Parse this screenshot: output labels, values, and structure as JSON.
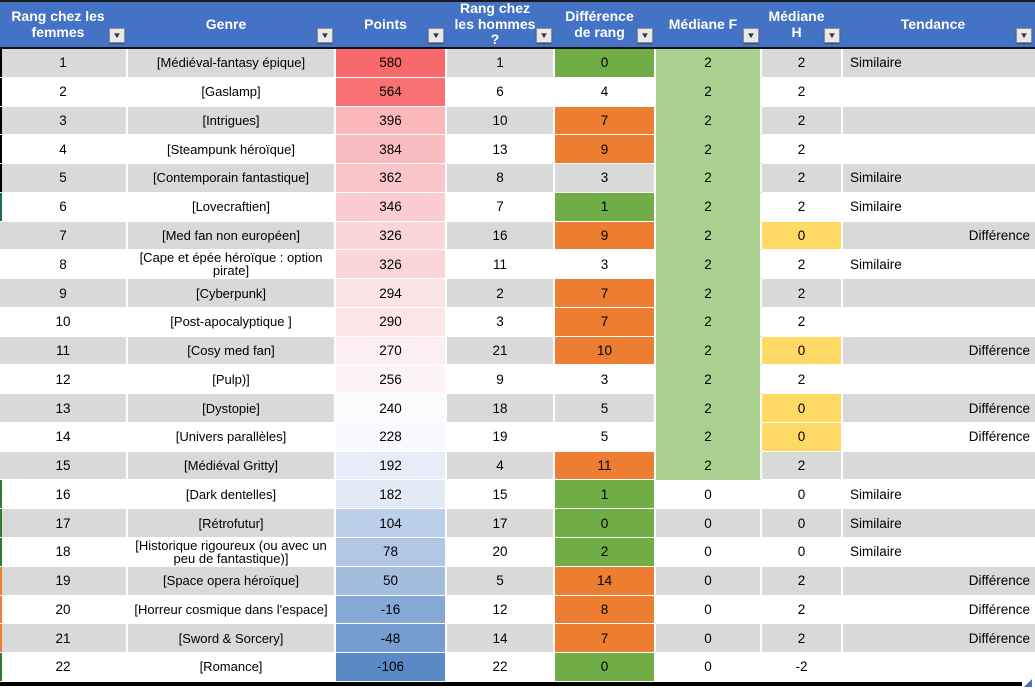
{
  "palette": {
    "header_bg": "#4472C4",
    "header_text": "#FFFFFF",
    "zebra_gray": "#D9D9D9",
    "zebra_white": "#FFFFFF",
    "diff_green": "#70AD47",
    "diff_orange": "#ED7D31",
    "mediane_f_green": "#A9D08E",
    "mediane_h_yellow": "#FFD966",
    "points_scale_max_red": "#F8696B",
    "points_scale_mid_white": "#FCFCFF",
    "points_scale_min_blue": "#5A8AC6",
    "table_border_black": "#000000",
    "resize_handle_blue": "#4472C4"
  },
  "icons": {
    "filter_dropdown": "▼"
  },
  "table": {
    "columns": [
      {
        "label": "Rang chez les femmes"
      },
      {
        "label": "Genre"
      },
      {
        "label": "Points"
      },
      {
        "label": "Rang chez les hommes ?"
      },
      {
        "label": "Différence de rang"
      },
      {
        "label": "Médiane F"
      },
      {
        "label": "Médiane H"
      },
      {
        "label": "Tendance"
      }
    ],
    "rows": [
      {
        "rank_f": "1",
        "genre": "[Médiéval-fantasy épique]",
        "points": "580",
        "points_bg": "#F8696B",
        "rank_h": "1",
        "diff": "0",
        "diff_bg": "#70AD47",
        "med_f": "2",
        "med_f_bg": "#A9D08E",
        "med_h": "2",
        "med_h_bg": "",
        "tendance": "Similaire",
        "tendance_align": "left",
        "zebra": "#D9D9D9",
        "edge_color": "#000000"
      },
      {
        "rank_f": "2",
        "genre": "[Gaslamp]",
        "points": "564",
        "points_bg": "#F87173",
        "rank_h": "6",
        "diff": "4",
        "diff_bg": "",
        "med_f": "2",
        "med_f_bg": "#A9D08E",
        "med_h": "2",
        "med_h_bg": "",
        "tendance": "",
        "tendance_align": "left",
        "zebra": "#FFFFFF",
        "edge_color": "#000000"
      },
      {
        "rank_f": "3",
        "genre": "[Intrigues]",
        "points": "396",
        "points_bg": "#FAB8BA",
        "rank_h": "10",
        "diff": "7",
        "diff_bg": "#ED7D31",
        "med_f": "2",
        "med_f_bg": "#A9D08E",
        "med_h": "2",
        "med_h_bg": "",
        "tendance": "",
        "tendance_align": "left",
        "zebra": "#D9D9D9",
        "edge_color": "#000000"
      },
      {
        "rank_f": "4",
        "genre": "[Steampunk héroïque]",
        "points": "384",
        "points_bg": "#FABDBF",
        "rank_h": "13",
        "diff": "9",
        "diff_bg": "#ED7D31",
        "med_f": "2",
        "med_f_bg": "#A9D08E",
        "med_h": "2",
        "med_h_bg": "",
        "tendance": "",
        "tendance_align": "left",
        "zebra": "#FFFFFF",
        "edge_color": "#000000"
      },
      {
        "rank_f": "5",
        "genre": "[Contemporain fantastique]",
        "points": "362",
        "points_bg": "#FAC6C9",
        "rank_h": "8",
        "diff": "3",
        "diff_bg": "",
        "med_f": "2",
        "med_f_bg": "#A9D08E",
        "med_h": "2",
        "med_h_bg": "",
        "tendance": "Similaire",
        "tendance_align": "left",
        "zebra": "#D9D9D9",
        "edge_color": "#000000"
      },
      {
        "rank_f": "6",
        "genre": "[Lovecraftien]",
        "points": "346",
        "points_bg": "#FBCDD0",
        "rank_h": "7",
        "diff": "1",
        "diff_bg": "#70AD47",
        "med_f": "2",
        "med_f_bg": "#A9D08E",
        "med_h": "2",
        "med_h_bg": "",
        "tendance": "Similaire",
        "tendance_align": "left",
        "zebra": "#FFFFFF",
        "edge_color": "#1E7145"
      },
      {
        "rank_f": "7",
        "genre": "[Med fan non européen]",
        "points": "326",
        "points_bg": "#FBD6D9",
        "rank_h": "16",
        "diff": "9",
        "diff_bg": "#ED7D31",
        "med_f": "2",
        "med_f_bg": "#A9D08E",
        "med_h": "0",
        "med_h_bg": "#FFD966",
        "tendance": "Différence",
        "tendance_align": "right",
        "zebra": "#D9D9D9",
        "edge_color": ""
      },
      {
        "rank_f": "8",
        "genre": "[Cape et épée héroïque : option pirate]",
        "points": "326",
        "points_bg": "#FBD6D9",
        "rank_h": "11",
        "diff": "3",
        "diff_bg": "",
        "med_f": "2",
        "med_f_bg": "#A9D08E",
        "med_h": "2",
        "med_h_bg": "",
        "tendance": "Similaire",
        "tendance_align": "left",
        "zebra": "#FFFFFF",
        "edge_color": ""
      },
      {
        "rank_f": "9",
        "genre": "[Cyberpunk]",
        "points": "294",
        "points_bg": "#FBE4E6",
        "rank_h": "2",
        "diff": "7",
        "diff_bg": "#ED7D31",
        "med_f": "2",
        "med_f_bg": "#A9D08E",
        "med_h": "2",
        "med_h_bg": "",
        "tendance": "",
        "tendance_align": "left",
        "zebra": "#D9D9D9",
        "edge_color": ""
      },
      {
        "rank_f": "10",
        "genre": "[Post-apocalyptique ]",
        "points": "290",
        "points_bg": "#FBE5E8",
        "rank_h": "3",
        "diff": "7",
        "diff_bg": "#ED7D31",
        "med_f": "2",
        "med_f_bg": "#A9D08E",
        "med_h": "2",
        "med_h_bg": "",
        "tendance": "",
        "tendance_align": "left",
        "zebra": "#FFFFFF",
        "edge_color": ""
      },
      {
        "rank_f": "11",
        "genre": "[Cosy med fan]",
        "points": "270",
        "points_bg": "#FCEEF1",
        "rank_h": "21",
        "diff": "10",
        "diff_bg": "#ED7D31",
        "med_f": "2",
        "med_f_bg": "#A9D08E",
        "med_h": "0",
        "med_h_bg": "#FFD966",
        "tendance": "Différence",
        "tendance_align": "right",
        "zebra": "#D9D9D9",
        "edge_color": ""
      },
      {
        "rank_f": "12",
        "genre": "[Pulp)]",
        "points": "256",
        "points_bg": "#FCF4F7",
        "rank_h": "9",
        "diff": "3",
        "diff_bg": "",
        "med_f": "2",
        "med_f_bg": "#A9D08E",
        "med_h": "2",
        "med_h_bg": "",
        "tendance": "",
        "tendance_align": "left",
        "zebra": "#FFFFFF",
        "edge_color": ""
      },
      {
        "rank_f": "13",
        "genre": "[Dystopie]",
        "points": "240",
        "points_bg": "#FCFBFE",
        "rank_h": "18",
        "diff": "5",
        "diff_bg": "",
        "med_f": "2",
        "med_f_bg": "#A9D08E",
        "med_h": "0",
        "med_h_bg": "#FFD966",
        "tendance": "Différence",
        "tendance_align": "right",
        "zebra": "#D9D9D9",
        "edge_color": ""
      },
      {
        "rank_f": "14",
        "genre": "[Univers parallèles]",
        "points": "228",
        "points_bg": "#F8F9FE",
        "rank_h": "19",
        "diff": "5",
        "diff_bg": "",
        "med_f": "2",
        "med_f_bg": "#A9D08E",
        "med_h": "0",
        "med_h_bg": "#FFD966",
        "tendance": "Différence",
        "tendance_align": "right",
        "zebra": "#FFFFFF",
        "edge_color": ""
      },
      {
        "rank_f": "15",
        "genre": "[Médiéval Gritty]",
        "points": "192",
        "points_bg": "#E7EDF8",
        "rank_h": "4",
        "diff": "11",
        "diff_bg": "#ED7D31",
        "med_f": "2",
        "med_f_bg": "#A9D08E",
        "med_h": "2",
        "med_h_bg": "",
        "tendance": "",
        "tendance_align": "left",
        "zebra": "#D9D9D9",
        "edge_color": ""
      },
      {
        "rank_f": "16",
        "genre": "[Dark dentelles]",
        "points": "182",
        "points_bg": "#E2EAF6",
        "rank_h": "15",
        "diff": "1",
        "diff_bg": "#70AD47",
        "med_f": "0",
        "med_f_bg": "",
        "med_h": "0",
        "med_h_bg": "",
        "tendance": "Similaire",
        "tendance_align": "left",
        "zebra": "#FFFFFF",
        "edge_color": "#2E7D32"
      },
      {
        "rank_f": "17",
        "genre": "[Rétrofutur]",
        "points": "104",
        "points_bg": "#BDD0E9",
        "rank_h": "17",
        "diff": "0",
        "diff_bg": "#70AD47",
        "med_f": "0",
        "med_f_bg": "",
        "med_h": "0",
        "med_h_bg": "",
        "tendance": "Similaire",
        "tendance_align": "left",
        "zebra": "#D9D9D9",
        "edge_color": "#2E7D32"
      },
      {
        "rank_f": "18",
        "genre": "[Historique rigoureux (ou avec un peu de fantastique)]",
        "points": "78",
        "points_bg": "#B1C7E5",
        "rank_h": "20",
        "diff": "2",
        "diff_bg": "#70AD47",
        "med_f": "0",
        "med_f_bg": "",
        "med_h": "0",
        "med_h_bg": "",
        "tendance": "Similaire",
        "tendance_align": "left",
        "zebra": "#FFFFFF",
        "edge_color": "#2E7D32"
      },
      {
        "rank_f": "19",
        "genre": "[Space opera héroïque]",
        "points": "50",
        "points_bg": "#A4BEE0",
        "rank_h": "5",
        "diff": "14",
        "diff_bg": "#ED7D31",
        "med_f": "0",
        "med_f_bg": "",
        "med_h": "2",
        "med_h_bg": "",
        "tendance": "Différence",
        "tendance_align": "right",
        "zebra": "#D9D9D9",
        "edge_color": "#ED7D31"
      },
      {
        "rank_f": "20",
        "genre": "[Horreur cosmique dans l'espace]",
        "points": "-16",
        "points_bg": "#85A8D5",
        "rank_h": "12",
        "diff": "8",
        "diff_bg": "#ED7D31",
        "med_f": "0",
        "med_f_bg": "",
        "med_h": "2",
        "med_h_bg": "",
        "tendance": "Différence",
        "tendance_align": "right",
        "zebra": "#FFFFFF",
        "edge_color": "#ED7D31"
      },
      {
        "rank_f": "21",
        "genre": "[Sword & Sorcery]",
        "points": "-48",
        "points_bg": "#759DD0",
        "rank_h": "14",
        "diff": "7",
        "diff_bg": "#ED7D31",
        "med_f": "0",
        "med_f_bg": "",
        "med_h": "2",
        "med_h_bg": "",
        "tendance": "Différence",
        "tendance_align": "right",
        "zebra": "#D9D9D9",
        "edge_color": "#ED7D31"
      },
      {
        "rank_f": "22",
        "genre": "[Romance]",
        "points": "-106",
        "points_bg": "#5A8AC6",
        "rank_h": "22",
        "diff": "0",
        "diff_bg": "#70AD47",
        "med_f": "0",
        "med_f_bg": "",
        "med_h": "-2",
        "med_h_bg": "",
        "tendance": "",
        "tendance_align": "left",
        "zebra": "#FFFFFF",
        "edge_color": "#2E7D32"
      }
    ]
  }
}
